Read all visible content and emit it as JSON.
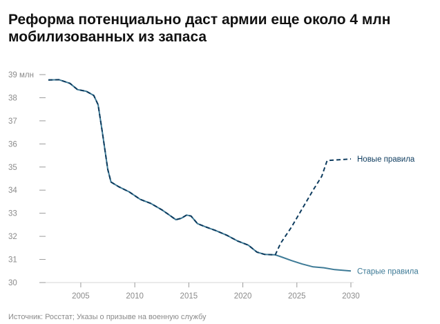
{
  "chart_data": {
    "type": "line",
    "title": "Реформа потенциально даст армии еще около 4 млн мобилизованных из запаса",
    "source": "Источник: Росстат; Указы о призыве на военную службу",
    "xlabel": "",
    "ylabel": "",
    "xlim": [
      2002,
      2031
    ],
    "ylim": [
      30,
      39
    ],
    "x_ticks": [
      2005,
      2010,
      2015,
      2020,
      2025,
      2030
    ],
    "y_ticks": [
      {
        "value": 30,
        "label": "30"
      },
      {
        "value": 31,
        "label": "31"
      },
      {
        "value": 32,
        "label": "32"
      },
      {
        "value": 33,
        "label": "33"
      },
      {
        "value": 34,
        "label": "34"
      },
      {
        "value": 35,
        "label": "35"
      },
      {
        "value": 36,
        "label": "36"
      },
      {
        "value": 37,
        "label": "37"
      },
      {
        "value": 38,
        "label": "38"
      },
      {
        "value": 39,
        "label": "39 млн"
      }
    ],
    "grid": false,
    "series": [
      {
        "name": "Старые правила",
        "color": "#3d7a96",
        "style": "solid",
        "points": [
          [
            2002.0,
            38.77
          ],
          [
            2003.0,
            38.78
          ],
          [
            2004.0,
            38.62
          ],
          [
            2004.7,
            38.35
          ],
          [
            2005.5,
            38.28
          ],
          [
            2006.2,
            38.1
          ],
          [
            2006.6,
            37.7
          ],
          [
            2007.0,
            36.5
          ],
          [
            2007.5,
            34.9
          ],
          [
            2007.8,
            34.35
          ],
          [
            2008.5,
            34.15
          ],
          [
            2009.5,
            33.92
          ],
          [
            2010.5,
            33.6
          ],
          [
            2011.5,
            33.42
          ],
          [
            2012.5,
            33.15
          ],
          [
            2013.2,
            32.92
          ],
          [
            2013.8,
            32.72
          ],
          [
            2014.3,
            32.78
          ],
          [
            2014.8,
            32.92
          ],
          [
            2015.2,
            32.88
          ],
          [
            2015.8,
            32.55
          ],
          [
            2016.5,
            32.42
          ],
          [
            2017.5,
            32.25
          ],
          [
            2018.5,
            32.05
          ],
          [
            2019.5,
            31.8
          ],
          [
            2020.5,
            31.62
          ],
          [
            2021.3,
            31.32
          ],
          [
            2022.0,
            31.22
          ],
          [
            2023.0,
            31.2
          ],
          [
            2023.5,
            31.12
          ],
          [
            2024.5,
            30.95
          ],
          [
            2025.5,
            30.8
          ],
          [
            2026.5,
            30.68
          ],
          [
            2027.5,
            30.64
          ],
          [
            2028.5,
            30.56
          ],
          [
            2030.0,
            30.5
          ]
        ],
        "label": "Старые правила"
      },
      {
        "name": "Новые правила",
        "color": "#0d3b5e",
        "style": "dashed",
        "points": [
          [
            2002.0,
            38.77
          ],
          [
            2003.0,
            38.78
          ],
          [
            2004.0,
            38.62
          ],
          [
            2004.7,
            38.35
          ],
          [
            2005.5,
            38.28
          ],
          [
            2006.2,
            38.1
          ],
          [
            2006.6,
            37.7
          ],
          [
            2007.0,
            36.5
          ],
          [
            2007.5,
            34.9
          ],
          [
            2007.8,
            34.35
          ],
          [
            2008.5,
            34.15
          ],
          [
            2009.5,
            33.92
          ],
          [
            2010.5,
            33.6
          ],
          [
            2011.5,
            33.42
          ],
          [
            2012.5,
            33.15
          ],
          [
            2013.2,
            32.92
          ],
          [
            2013.8,
            32.72
          ],
          [
            2014.3,
            32.78
          ],
          [
            2014.8,
            32.92
          ],
          [
            2015.2,
            32.88
          ],
          [
            2015.8,
            32.55
          ],
          [
            2016.5,
            32.42
          ],
          [
            2017.5,
            32.25
          ],
          [
            2018.5,
            32.05
          ],
          [
            2019.5,
            31.8
          ],
          [
            2020.5,
            31.62
          ],
          [
            2021.3,
            31.32
          ],
          [
            2022.0,
            31.22
          ],
          [
            2023.0,
            31.2
          ],
          [
            2023.5,
            31.7
          ],
          [
            2024.5,
            32.4
          ],
          [
            2025.5,
            33.2
          ],
          [
            2026.5,
            34.0
          ],
          [
            2027.3,
            34.6
          ],
          [
            2027.8,
            35.28
          ],
          [
            2028.5,
            35.3
          ],
          [
            2030.0,
            35.35
          ]
        ],
        "label": "Новые правила"
      }
    ]
  }
}
